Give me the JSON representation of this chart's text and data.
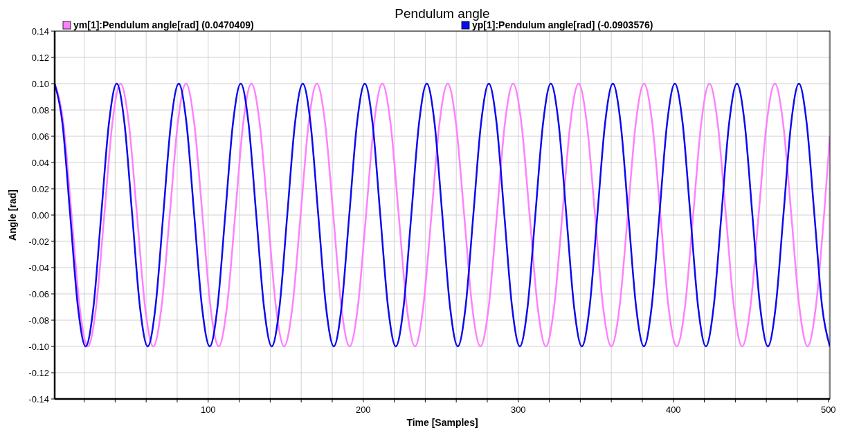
{
  "chart_data": {
    "type": "line",
    "title": "Pendulum angle",
    "xlabel": "Time [Samples]",
    "ylabel": "Angle [rad]",
    "xlim": [
      1,
      501
    ],
    "ylim": [
      -0.14,
      0.14
    ],
    "xticks": [
      {
        "value": 20,
        "label": null
      },
      {
        "value": 40,
        "label": null
      },
      {
        "value": 60,
        "label": null
      },
      {
        "value": 80,
        "label": null
      },
      100,
      {
        "value": 120,
        "label": null
      },
      {
        "value": 140,
        "label": null
      },
      {
        "value": 160,
        "label": null
      },
      {
        "value": 180,
        "label": null
      },
      200,
      {
        "value": 220,
        "label": null
      },
      {
        "value": 240,
        "label": null
      },
      {
        "value": 260,
        "label": null
      },
      {
        "value": 280,
        "label": null
      },
      300,
      {
        "value": 320,
        "label": null
      },
      {
        "value": 340,
        "label": null
      },
      {
        "value": 360,
        "label": null
      },
      {
        "value": 380,
        "label": null
      },
      400,
      {
        "value": 420,
        "label": null
      },
      {
        "value": 440,
        "label": null
      },
      {
        "value": 460,
        "label": null
      },
      {
        "value": 480,
        "label": null
      },
      500
    ],
    "yticks": [
      {
        "value": -0.14,
        "label": "-0.14"
      },
      {
        "value": -0.12,
        "label": "-0.12"
      },
      {
        "value": -0.1,
        "label": "-0.10"
      },
      {
        "value": -0.08,
        "label": "-0.08"
      },
      {
        "value": -0.06,
        "label": "-0.06"
      },
      {
        "value": -0.04,
        "label": "-0.04"
      },
      {
        "value": -0.02,
        "label": "-0.02"
      },
      {
        "value": 0,
        "label": "0.00"
      },
      {
        "value": 0.02,
        "label": "0.02"
      },
      {
        "value": 0.04,
        "label": "0.04"
      },
      {
        "value": 0.06,
        "label": "0.06"
      },
      {
        "value": 0.08,
        "label": "0.08"
      },
      {
        "value": 0.1,
        "label": "0.10"
      },
      {
        "value": 0.12,
        "label": "0.12"
      },
      {
        "value": 0.14,
        "label": "0.14"
      }
    ],
    "grid": true,
    "legend": "top",
    "marker": "none",
    "line_style": "solid",
    "series": [
      {
        "name": "ym[1]:Pendulum angle[rad] (0.0470409)",
        "color": "#ff80ff",
        "x": [
          1,
          6.6,
          11.9,
          17.1,
          22.4,
          27.7,
          33.0,
          38.2,
          43.5,
          48.8,
          54.1,
          59.3,
          64.6,
          69.9,
          75.2,
          80.4,
          85.7,
          91.0,
          96.3,
          101.5,
          106.8,
          112.1,
          117.4,
          122.6,
          127.9,
          133.2,
          138.5,
          143.7,
          149.0,
          154.3,
          159.6,
          164.8,
          170.1,
          175.4,
          180.7,
          185.9,
          191.2,
          196.5,
          201.8,
          207.0,
          212.3,
          217.6,
          222.9,
          228.1,
          233.4,
          238.7,
          244.0,
          249.2,
          254.5,
          259.8,
          265.1,
          270.3,
          275.6,
          280.9,
          286.2,
          291.4,
          296.7,
          302.0,
          307.3,
          312.5,
          317.8,
          323.1,
          328.4,
          333.6,
          338.9,
          344.2,
          349.5,
          354.7,
          360.0,
          365.3,
          370.6,
          375.8,
          381.1,
          386.4,
          391.7,
          396.9,
          402.2,
          407.5,
          412.8,
          418.0,
          423.3,
          428.6,
          433.9,
          439.1,
          444.4,
          449.7,
          455.0,
          460.2,
          465.5,
          470.8,
          476.1,
          481.3,
          486.6,
          491.9,
          497.2,
          501
        ],
        "values": [
          0.1,
          0.07,
          0,
          -0.07,
          -0.1,
          -0.07,
          0,
          0.07,
          0.1,
          0.07,
          0,
          -0.07,
          -0.1,
          -0.07,
          0,
          0.07,
          0.1,
          0.07,
          0,
          -0.07,
          -0.1,
          -0.07,
          0,
          0.07,
          0.1,
          0.07,
          0,
          -0.07,
          -0.1,
          -0.07,
          0,
          0.07,
          0.1,
          0.07,
          0,
          -0.07,
          -0.1,
          -0.07,
          0,
          0.07,
          0.1,
          0.07,
          0,
          -0.07,
          -0.1,
          -0.07,
          0,
          0.07,
          0.1,
          0.07,
          0,
          -0.07,
          -0.1,
          -0.07,
          0,
          0.07,
          0.1,
          0.07,
          0,
          -0.07,
          -0.1,
          -0.07,
          0,
          0.07,
          0.1,
          0.07,
          0,
          -0.07,
          -0.1,
          -0.07,
          0,
          0.07,
          0.1,
          0.07,
          0,
          -0.07,
          -0.1,
          -0.07,
          0,
          0.07,
          0.1,
          0.07,
          0,
          -0.07,
          -0.1,
          -0.07,
          0,
          0.07,
          0.1,
          0.07,
          0,
          -0.07,
          -0.1,
          -0.07,
          0,
          0.06
        ]
      },
      {
        "name": "yp[1]:Pendulum angle[rad] (-0.0903576)",
        "color": "#0a0af0",
        "x": [
          1,
          6,
          11,
          16,
          21,
          26,
          31,
          36,
          41,
          46,
          51,
          56,
          61,
          66,
          71,
          76,
          81,
          86,
          91,
          96,
          101,
          106,
          111,
          116,
          121,
          126,
          131,
          136,
          141,
          146,
          151,
          156,
          161,
          166,
          171,
          176,
          181,
          186,
          191,
          196,
          201,
          206,
          211,
          216,
          221,
          226,
          231,
          236,
          241,
          246,
          251,
          256,
          261,
          266,
          271,
          276,
          281,
          286,
          291,
          296,
          301,
          306,
          311,
          316,
          321,
          326,
          331,
          336,
          341,
          346,
          351,
          356,
          361,
          366,
          371,
          376,
          381,
          386,
          391,
          396,
          401,
          406,
          411,
          416,
          421,
          426,
          431,
          436,
          441,
          446,
          451,
          456,
          461,
          466,
          471,
          476,
          481,
          486,
          491,
          496,
          501
        ],
        "values": [
          0.1,
          0.07,
          0,
          -0.07,
          -0.1,
          -0.07,
          0,
          0.07,
          0.1,
          0.07,
          0,
          -0.07,
          -0.1,
          -0.07,
          0,
          0.07,
          0.1,
          0.07,
          0,
          -0.07,
          -0.1,
          -0.07,
          0,
          0.07,
          0.1,
          0.07,
          0,
          -0.07,
          -0.1,
          -0.07,
          0,
          0.07,
          0.1,
          0.07,
          0,
          -0.07,
          -0.1,
          -0.07,
          0,
          0.07,
          0.1,
          0.07,
          0,
          -0.07,
          -0.1,
          -0.07,
          0,
          0.07,
          0.1,
          0.07,
          0,
          -0.07,
          -0.1,
          -0.07,
          0,
          0.07,
          0.1,
          0.07,
          0,
          -0.07,
          -0.1,
          -0.07,
          0,
          0.07,
          0.1,
          0.07,
          0,
          -0.07,
          -0.1,
          -0.07,
          0,
          0.07,
          0.1,
          0.07,
          0,
          -0.07,
          -0.1,
          -0.07,
          0,
          0.07,
          0.1,
          0.07,
          0,
          -0.07,
          -0.1,
          -0.07,
          0,
          0.07,
          0.1,
          0.07,
          0,
          -0.07,
          -0.1,
          -0.07,
          0,
          0.07,
          0.1,
          0.07,
          0,
          -0.07,
          -0.1
        ]
      }
    ]
  }
}
